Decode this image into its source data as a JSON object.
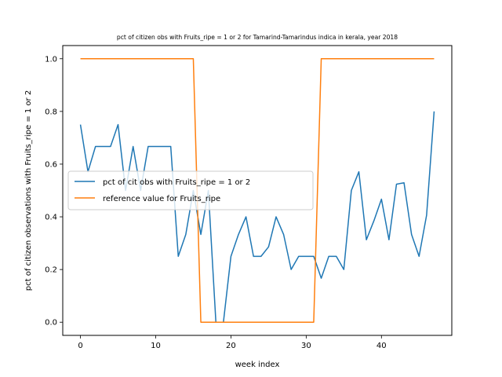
{
  "chart_data": {
    "type": "line",
    "title": "pct of citizen obs with Fruits_ripe = 1 or 2 for Tamarind-Tamarindus indica in kerala, year 2018",
    "xlabel": "week index",
    "ylabel": "pct of citizen observations with Fruits_ripe = 1 or 2",
    "xlim": [
      -2.35,
      49.35
    ],
    "ylim": [
      -0.05,
      1.05
    ],
    "xticks": [
      0,
      10,
      20,
      30,
      40
    ],
    "yticks": [
      0.0,
      0.2,
      0.4,
      0.6,
      0.8,
      1.0
    ],
    "legend_position": "center-left",
    "grid": false,
    "series": [
      {
        "name": "pct of cit obs with Fruits_ripe = 1 or 2",
        "color": "#1f77b4",
        "x": [
          0,
          1,
          2,
          3,
          4,
          5,
          6,
          7,
          8,
          9,
          10,
          11,
          12,
          13,
          14,
          15,
          16,
          17,
          18,
          19,
          20,
          21,
          22,
          23,
          24,
          25,
          26,
          27,
          28,
          29,
          30,
          31,
          32,
          33,
          34,
          35,
          36,
          37,
          38,
          39,
          40,
          41,
          42,
          43,
          44,
          45,
          46,
          47
        ],
        "y": [
          0.75,
          0.571,
          0.667,
          0.667,
          0.667,
          0.75,
          0.5,
          0.667,
          0.5,
          0.667,
          0.667,
          0.667,
          0.667,
          0.25,
          0.333,
          0.5,
          0.333,
          0.5,
          0.0,
          0.0,
          0.25,
          0.333,
          0.4,
          0.25,
          0.25,
          0.286,
          0.4,
          0.333,
          0.2,
          0.25,
          0.25,
          0.25,
          0.167,
          0.25,
          0.25,
          0.2,
          0.5,
          0.571,
          0.313,
          0.385,
          0.467,
          0.313,
          0.524,
          0.529,
          0.333,
          0.25,
          0.406,
          0.8
        ]
      },
      {
        "name": "reference value for Fruits_ripe",
        "color": "#ff7f0e",
        "x": [
          0,
          1,
          2,
          3,
          4,
          5,
          6,
          7,
          8,
          9,
          10,
          11,
          12,
          13,
          14,
          15,
          16,
          17,
          18,
          19,
          20,
          21,
          22,
          23,
          24,
          25,
          26,
          27,
          28,
          29,
          30,
          31,
          32,
          33,
          34,
          35,
          36,
          37,
          38,
          39,
          40,
          41,
          42,
          43,
          44,
          45,
          46,
          47
        ],
        "y": [
          1,
          1,
          1,
          1,
          1,
          1,
          1,
          1,
          1,
          1,
          1,
          1,
          1,
          1,
          1,
          1,
          0,
          0,
          0,
          0,
          0,
          0,
          0,
          0,
          0,
          0,
          0,
          0,
          0,
          0,
          0,
          0,
          1,
          1,
          1,
          1,
          1,
          1,
          1,
          1,
          1,
          1,
          1,
          1,
          1,
          1,
          1,
          1
        ]
      }
    ]
  }
}
